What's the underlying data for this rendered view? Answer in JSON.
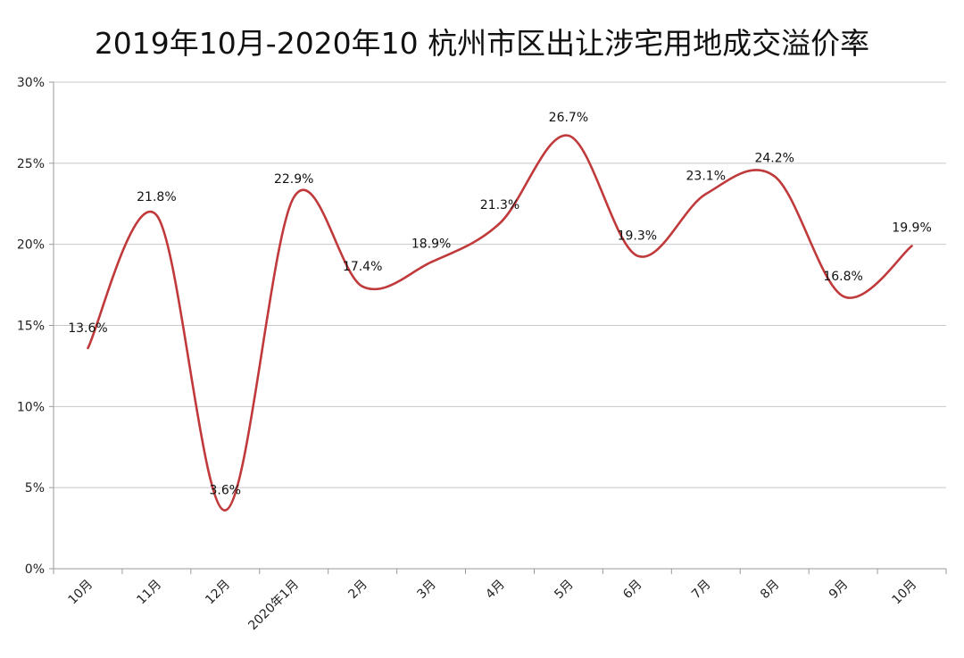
{
  "chart_data": {
    "type": "line",
    "title": "2019年10月-2020年10 杭州市区出让涉宅用地成交溢价率",
    "categories": [
      "10月",
      "11月",
      "12月",
      "2020年1月",
      "2月",
      "3月",
      "4月",
      "5月",
      "6月",
      "7月",
      "8月",
      "9月",
      "10月"
    ],
    "series": [
      {
        "values": [
          13.6,
          21.8,
          3.6,
          22.9,
          17.4,
          18.9,
          21.3,
          26.7,
          19.3,
          23.1,
          24.2,
          16.8,
          19.9
        ],
        "labels": [
          "13.6%",
          "21.8%",
          "3.6%",
          "22.9%",
          "17.4%",
          "18.9%",
          "21.3%",
          "26.7%",
          "19.3%",
          "23.1%",
          "24.2%",
          "16.8%",
          "19.9%"
        ]
      }
    ],
    "y_ticks": [
      "0%",
      "5%",
      "10%",
      "15%",
      "20%",
      "25%",
      "30%"
    ],
    "ylim": [
      0,
      30
    ],
    "grid": true,
    "line_color": "#c0393b"
  }
}
